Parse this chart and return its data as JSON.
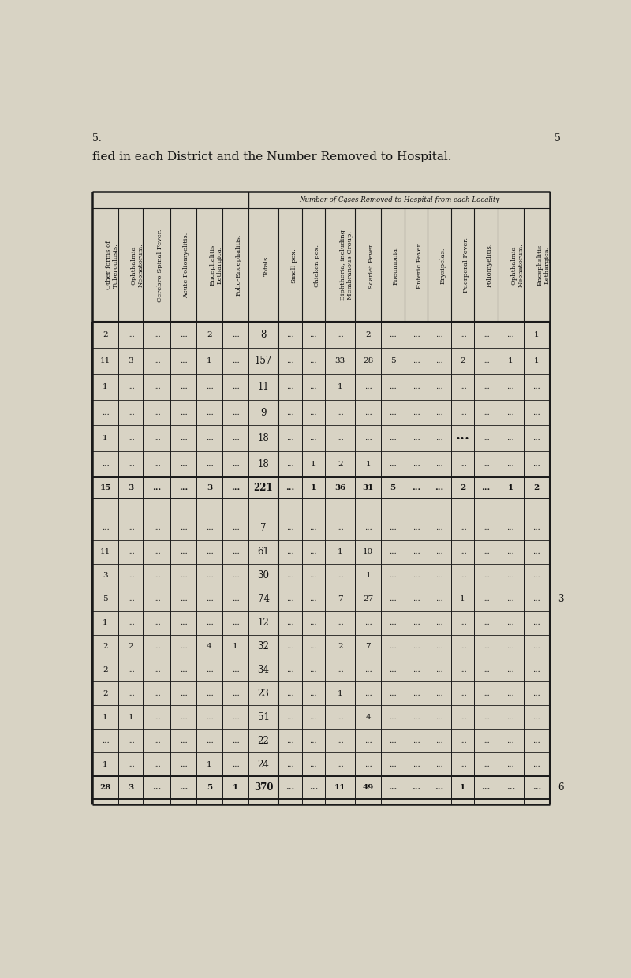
{
  "title_line1": "fied in each District and the Number Removed to Hospital.",
  "page_number_left": "5.",
  "page_number_right": "5",
  "header_span": "Number of Cąses Removed to Hospital from each Locality",
  "col_headers": [
    "Other forms of\nTuberculosis.",
    "Ophthalmia\nNeonatorum.",
    "Cerebro-Spinal Fever.",
    "Acute Poliomyelitis.",
    "Encephalitis\nLethargica.",
    "Polio-Encephalitis.",
    "Totals.",
    "Small-pox.",
    "Chicken-pox.",
    "Diphtheria, including\nMembranous Croup.",
    "Scarlet Fever.",
    "Pneumonia.",
    "Enteric Fever.",
    "Erysipelas.",
    "Puerperal Fever.",
    "Poliomyelitis.",
    "Ophthalmia\nNeonatorum.",
    "Encephalitis\nLethargica."
  ],
  "rows_section1": [
    [
      "2",
      "...",
      "...",
      "...",
      "2",
      "...",
      "8",
      "...",
      "...",
      "...",
      "2",
      "...",
      "...",
      "...",
      "...",
      "...",
      "...",
      "1"
    ],
    [
      "11",
      "3",
      "...",
      "...",
      "1",
      "...",
      "157",
      "...",
      "...",
      "33",
      "28",
      "5",
      "...",
      "...",
      "2",
      "...",
      "1",
      "1"
    ],
    [
      "1",
      "...",
      "...",
      "...",
      "...",
      "...",
      "11",
      "...",
      "...",
      "1",
      "...",
      "...",
      "...",
      "...",
      "...",
      "...",
      "...",
      "..."
    ],
    [
      "...",
      "...",
      "...",
      "...",
      "...",
      "...",
      "9",
      "...",
      "...",
      "...",
      "...",
      "...",
      "...",
      "...",
      "...",
      "...",
      "...",
      "..."
    ],
    [
      "1",
      "...",
      "...",
      "...",
      "...",
      "...",
      "18",
      "...",
      "...",
      "...",
      "...",
      "...",
      "...",
      "...",
      "...",
      "...",
      "...",
      "..."
    ],
    [
      "...",
      "...",
      "...",
      "...",
      "...",
      "...",
      "18",
      "...",
      "1",
      "2",
      "1",
      "...",
      "...",
      "...",
      "...",
      "...",
      "...",
      "..."
    ]
  ],
  "row_total1": [
    "15",
    "3",
    "...",
    "...",
    "3",
    "...",
    "221",
    "...",
    "1",
    "36",
    "31",
    "5",
    "...",
    "...",
    "2",
    "...",
    "1",
    "2"
  ],
  "rows_section2": [
    [
      "...",
      "...",
      "...",
      "...",
      "...",
      "...",
      "7",
      "...",
      "...",
      "...",
      "...",
      "...",
      "...",
      "...",
      "...",
      "...",
      "...",
      "..."
    ],
    [
      "11",
      "...",
      "...",
      "...",
      "...",
      "...",
      "61",
      "...",
      "...",
      "1",
      "10",
      "...",
      "...",
      "...",
      "...",
      "...",
      "...",
      "..."
    ],
    [
      "3",
      "...",
      "...",
      "...",
      "...",
      "...",
      "30",
      "...",
      "...",
      "...",
      "1",
      "...",
      "...",
      "...",
      "...",
      "...",
      "...",
      "..."
    ],
    [
      "5",
      "...",
      "...",
      "...",
      "...",
      "...",
      "74",
      "...",
      "...",
      "7",
      "27",
      "...",
      "...",
      "...",
      "1",
      "...",
      "...",
      "..."
    ],
    [
      "1",
      "...",
      "...",
      "...",
      "...",
      "...",
      "12",
      "...",
      "...",
      "...",
      "...",
      "...",
      "...",
      "...",
      "...",
      "...",
      "...",
      "..."
    ],
    [
      "2",
      "2",
      "...",
      "...",
      "4",
      "1",
      "32",
      "...",
      "...",
      "2",
      "7",
      "...",
      "...",
      "...",
      "...",
      "...",
      "...",
      "..."
    ],
    [
      "2",
      "...",
      "...",
      "...",
      "...",
      "...",
      "34",
      "...",
      "...",
      "...",
      "...",
      "...",
      "...",
      "...",
      "...",
      "...",
      "...",
      "..."
    ],
    [
      "2",
      "...",
      "...",
      "...",
      "...",
      "...",
      "23",
      "...",
      "...",
      "1",
      "...",
      "...",
      "...",
      "...",
      "...",
      "...",
      "...",
      "..."
    ],
    [
      "1",
      "1",
      "...",
      "...",
      "...",
      "...",
      "51",
      "...",
      "...",
      "...",
      "4",
      "...",
      "...",
      "...",
      "...",
      "...",
      "...",
      "..."
    ],
    [
      "...",
      "...",
      "...",
      "...",
      "...",
      "...",
      "22",
      "...",
      "...",
      "...",
      "...",
      "...",
      "...",
      "...",
      "...",
      "...",
      "...",
      "..."
    ],
    [
      "1",
      "...",
      "...",
      "...",
      "1",
      "...",
      "24",
      "...",
      "...",
      "...",
      "...",
      "...",
      "...",
      "...",
      "...",
      "...",
      "...",
      "..."
    ]
  ],
  "row_total2": [
    "28",
    "3",
    "...",
    "...",
    "5",
    "1",
    "370",
    "...",
    "...",
    "11",
    "49",
    "...",
    "...",
    "...",
    "1",
    "...",
    "...",
    "..."
  ],
  "puerperal_row5": "•••",
  "bg_color": "#d8d3c4",
  "table_bg": "#e8e3d5",
  "line_color": "#1a1a1a",
  "text_color": "#111111",
  "totals_col_idx": 6
}
